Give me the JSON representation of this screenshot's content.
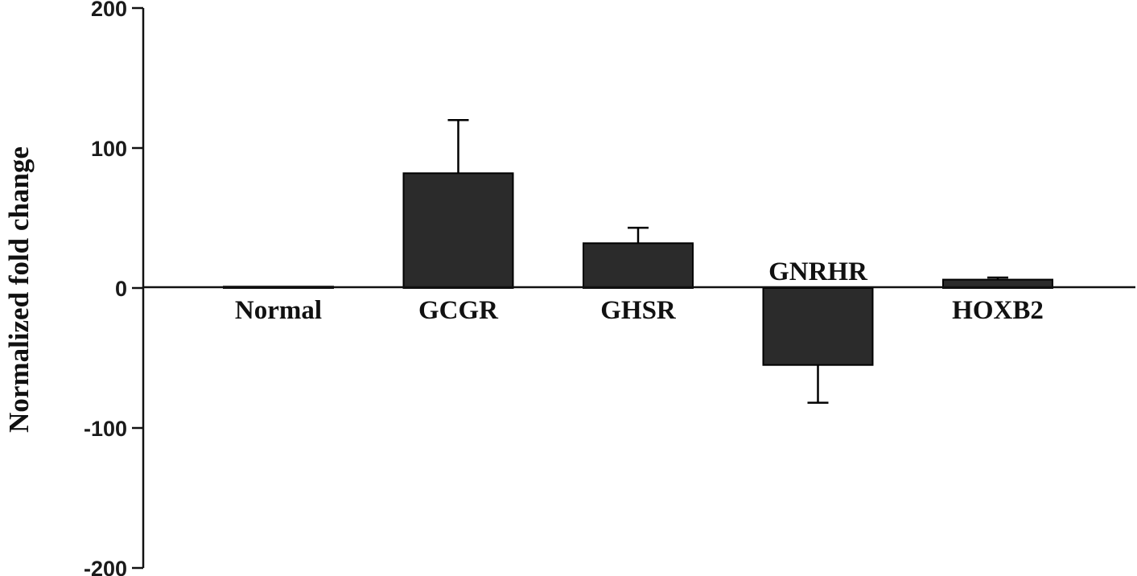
{
  "chart_data": {
    "type": "bar",
    "title": "",
    "xlabel": "",
    "ylabel": "Normalized fold change",
    "ylim": [
      -200,
      200
    ],
    "yticks": [
      200,
      100,
      0,
      -100,
      -200
    ],
    "grid": false,
    "categories": [
      "Normal",
      "GCGR",
      "GHSR",
      "GNRHR",
      "HOXB2"
    ],
    "values": [
      1,
      82,
      32,
      -55,
      6
    ],
    "error_bars": [
      0,
      38,
      11,
      27,
      1.5
    ],
    "bar_color": "#2b2b2b"
  }
}
